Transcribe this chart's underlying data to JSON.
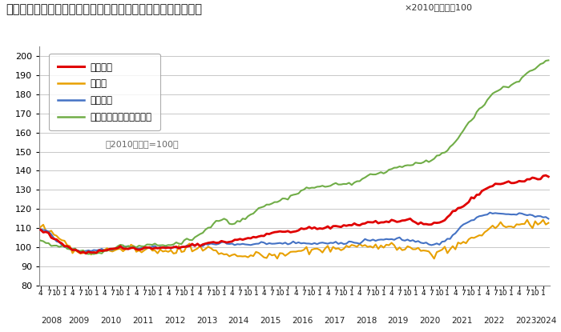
{
  "title": "＜不動産価格指数（住宅）（令和６年３月分・季節調整値）＞",
  "subtitle": "×2010年平均＝100",
  "note": "（2010年平均=100）",
  "ylim": [
    80,
    205
  ],
  "yticks": [
    80,
    90,
    100,
    110,
    120,
    130,
    140,
    150,
    160,
    170,
    180,
    190,
    200
  ],
  "legend_labels": [
    "住宅総合",
    "住宅地",
    "戸建住宅",
    "マンション（区分所有）"
  ],
  "colors": [
    "#e00000",
    "#e8a000",
    "#4472c4",
    "#70ad47"
  ],
  "linewidths": [
    2.0,
    1.5,
    1.5,
    1.5
  ],
  "background_color": "#ffffff",
  "plot_bg_color": "#ffffff",
  "grid_color": "#c8c8c8"
}
